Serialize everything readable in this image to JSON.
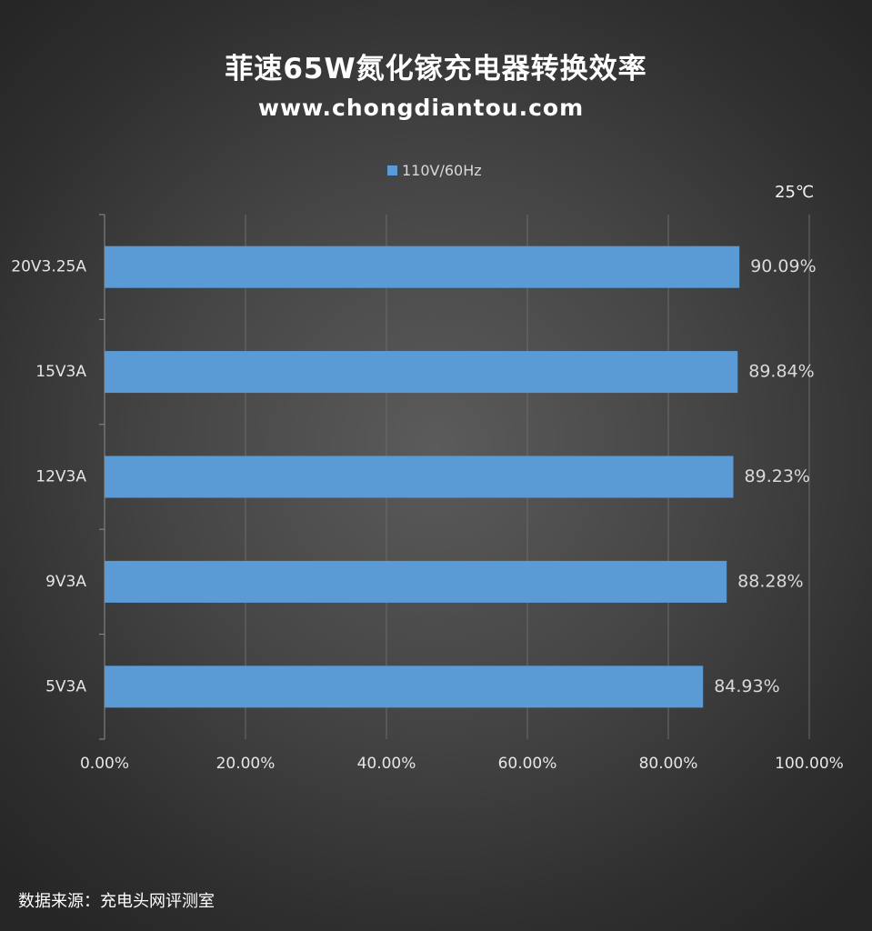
{
  "title": "菲速65W氮化镓充电器转换效率",
  "subtitle": "www.chongdiantou.com",
  "legend": {
    "label": "110V/60Hz",
    "color": "#5b9bd5"
  },
  "temperature_note": "25℃",
  "source_note": "数据来源：充电头网评测室",
  "colors": {
    "bar": "#5b9bd5",
    "gridline": "#6b6b6b",
    "axis": "#8c8c8c",
    "tick_text": "#e6e6e6",
    "value_text": "#d9d9d9"
  },
  "chart_data": {
    "type": "bar",
    "orientation": "horizontal",
    "categories": [
      "20V3.25A",
      "15V3A",
      "12V3A",
      "9V3A",
      "5V3A"
    ],
    "series": [
      {
        "name": "110V/60Hz",
        "values": [
          90.09,
          89.84,
          89.23,
          88.28,
          84.93
        ]
      }
    ],
    "value_labels": [
      "90.09%",
      "89.84%",
      "89.23%",
      "88.28%",
      "84.93%"
    ],
    "xlim": [
      0,
      100
    ],
    "x_ticks": [
      0,
      20,
      40,
      60,
      80,
      100
    ],
    "x_tick_labels": [
      "0.00%",
      "20.00%",
      "40.00%",
      "60.00%",
      "80.00%",
      "100.00%"
    ],
    "grid": true,
    "legend_position": "top"
  }
}
